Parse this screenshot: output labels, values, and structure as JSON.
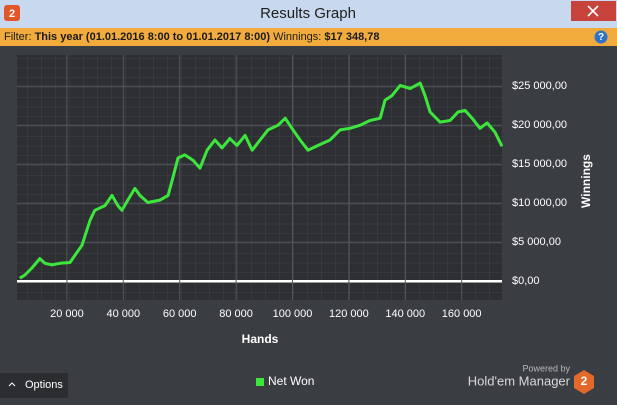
{
  "window": {
    "title": "Results Graph",
    "logo": "2"
  },
  "filter": {
    "label": "Filter:",
    "period": "This year (01.01.2016 8:00 to 01.01.2017 8:00)",
    "winnings_label": "Winnings:",
    "winnings": "$17 348,78"
  },
  "footer": {
    "options": "Options",
    "powered_by": "Powered by",
    "brand": "Hold'em Manager",
    "logo": "2"
  },
  "chart_data": {
    "type": "line",
    "xlabel": "Hands",
    "ylabel": "Winnings",
    "x": [
      3300,
      5100,
      7600,
      10400,
      12200,
      14700,
      17500,
      21100,
      22800,
      25300,
      28200,
      29900,
      33500,
      36000,
      38100,
      39500,
      41600,
      44100,
      45900,
      48700,
      53000,
      55900,
      57300,
      59400,
      61800,
      64700,
      67200,
      69700,
      72500,
      75000,
      77800,
      80300,
      83200,
      85700,
      88500,
      91300,
      94900,
      97400,
      99800,
      102700,
      105500,
      109000,
      113300,
      116900,
      120400,
      124000,
      127500,
      131100,
      132800,
      135300,
      138200,
      141700,
      145300,
      147000,
      148800,
      152300,
      155900,
      158700,
      161200,
      163700,
      166500,
      169000,
      171800,
      174300
    ],
    "series": [
      {
        "name": "Net Won",
        "color": "#3ce63c",
        "values": [
          400,
          800,
          1700,
          2900,
          2300,
          2100,
          2300,
          2400,
          3300,
          4600,
          7800,
          9100,
          9700,
          11000,
          9700,
          9100,
          10400,
          11900,
          11000,
          10100,
          10400,
          11000,
          12900,
          15800,
          16200,
          15500,
          14500,
          16800,
          18100,
          17100,
          18300,
          17400,
          18700,
          16800,
          18100,
          19400,
          20000,
          20900,
          19600,
          18100,
          16800,
          17400,
          18100,
          19400,
          19600,
          20000,
          20600,
          20900,
          23200,
          23800,
          25100,
          24700,
          25400,
          23800,
          21700,
          20400,
          20600,
          21700,
          21900,
          20900,
          19600,
          20300,
          19100,
          17300
        ]
      }
    ],
    "xlim": [
      2300,
      174300
    ],
    "ylim": [
      -2400,
      29000
    ],
    "xticks": [
      {
        "value": 20000,
        "label": "20 000"
      },
      {
        "value": 40000,
        "label": "40 000"
      },
      {
        "value": 60000,
        "label": "60 000"
      },
      {
        "value": 80000,
        "label": "80 000"
      },
      {
        "value": 100000,
        "label": "100 000"
      },
      {
        "value": 120000,
        "label": "120 000"
      },
      {
        "value": 140000,
        "label": "140 000"
      },
      {
        "value": 160000,
        "label": "160 000"
      }
    ],
    "yticks": [
      {
        "value": 0,
        "label": "$0,00"
      },
      {
        "value": 5000,
        "label": "$5 000,00"
      },
      {
        "value": 10000,
        "label": "$10 000,00"
      },
      {
        "value": 15000,
        "label": "$15 000,00"
      },
      {
        "value": 20000,
        "label": "$20 000,00"
      },
      {
        "value": 25000,
        "label": "$25 000,00"
      }
    ],
    "grid": true,
    "legend": "bottom"
  }
}
